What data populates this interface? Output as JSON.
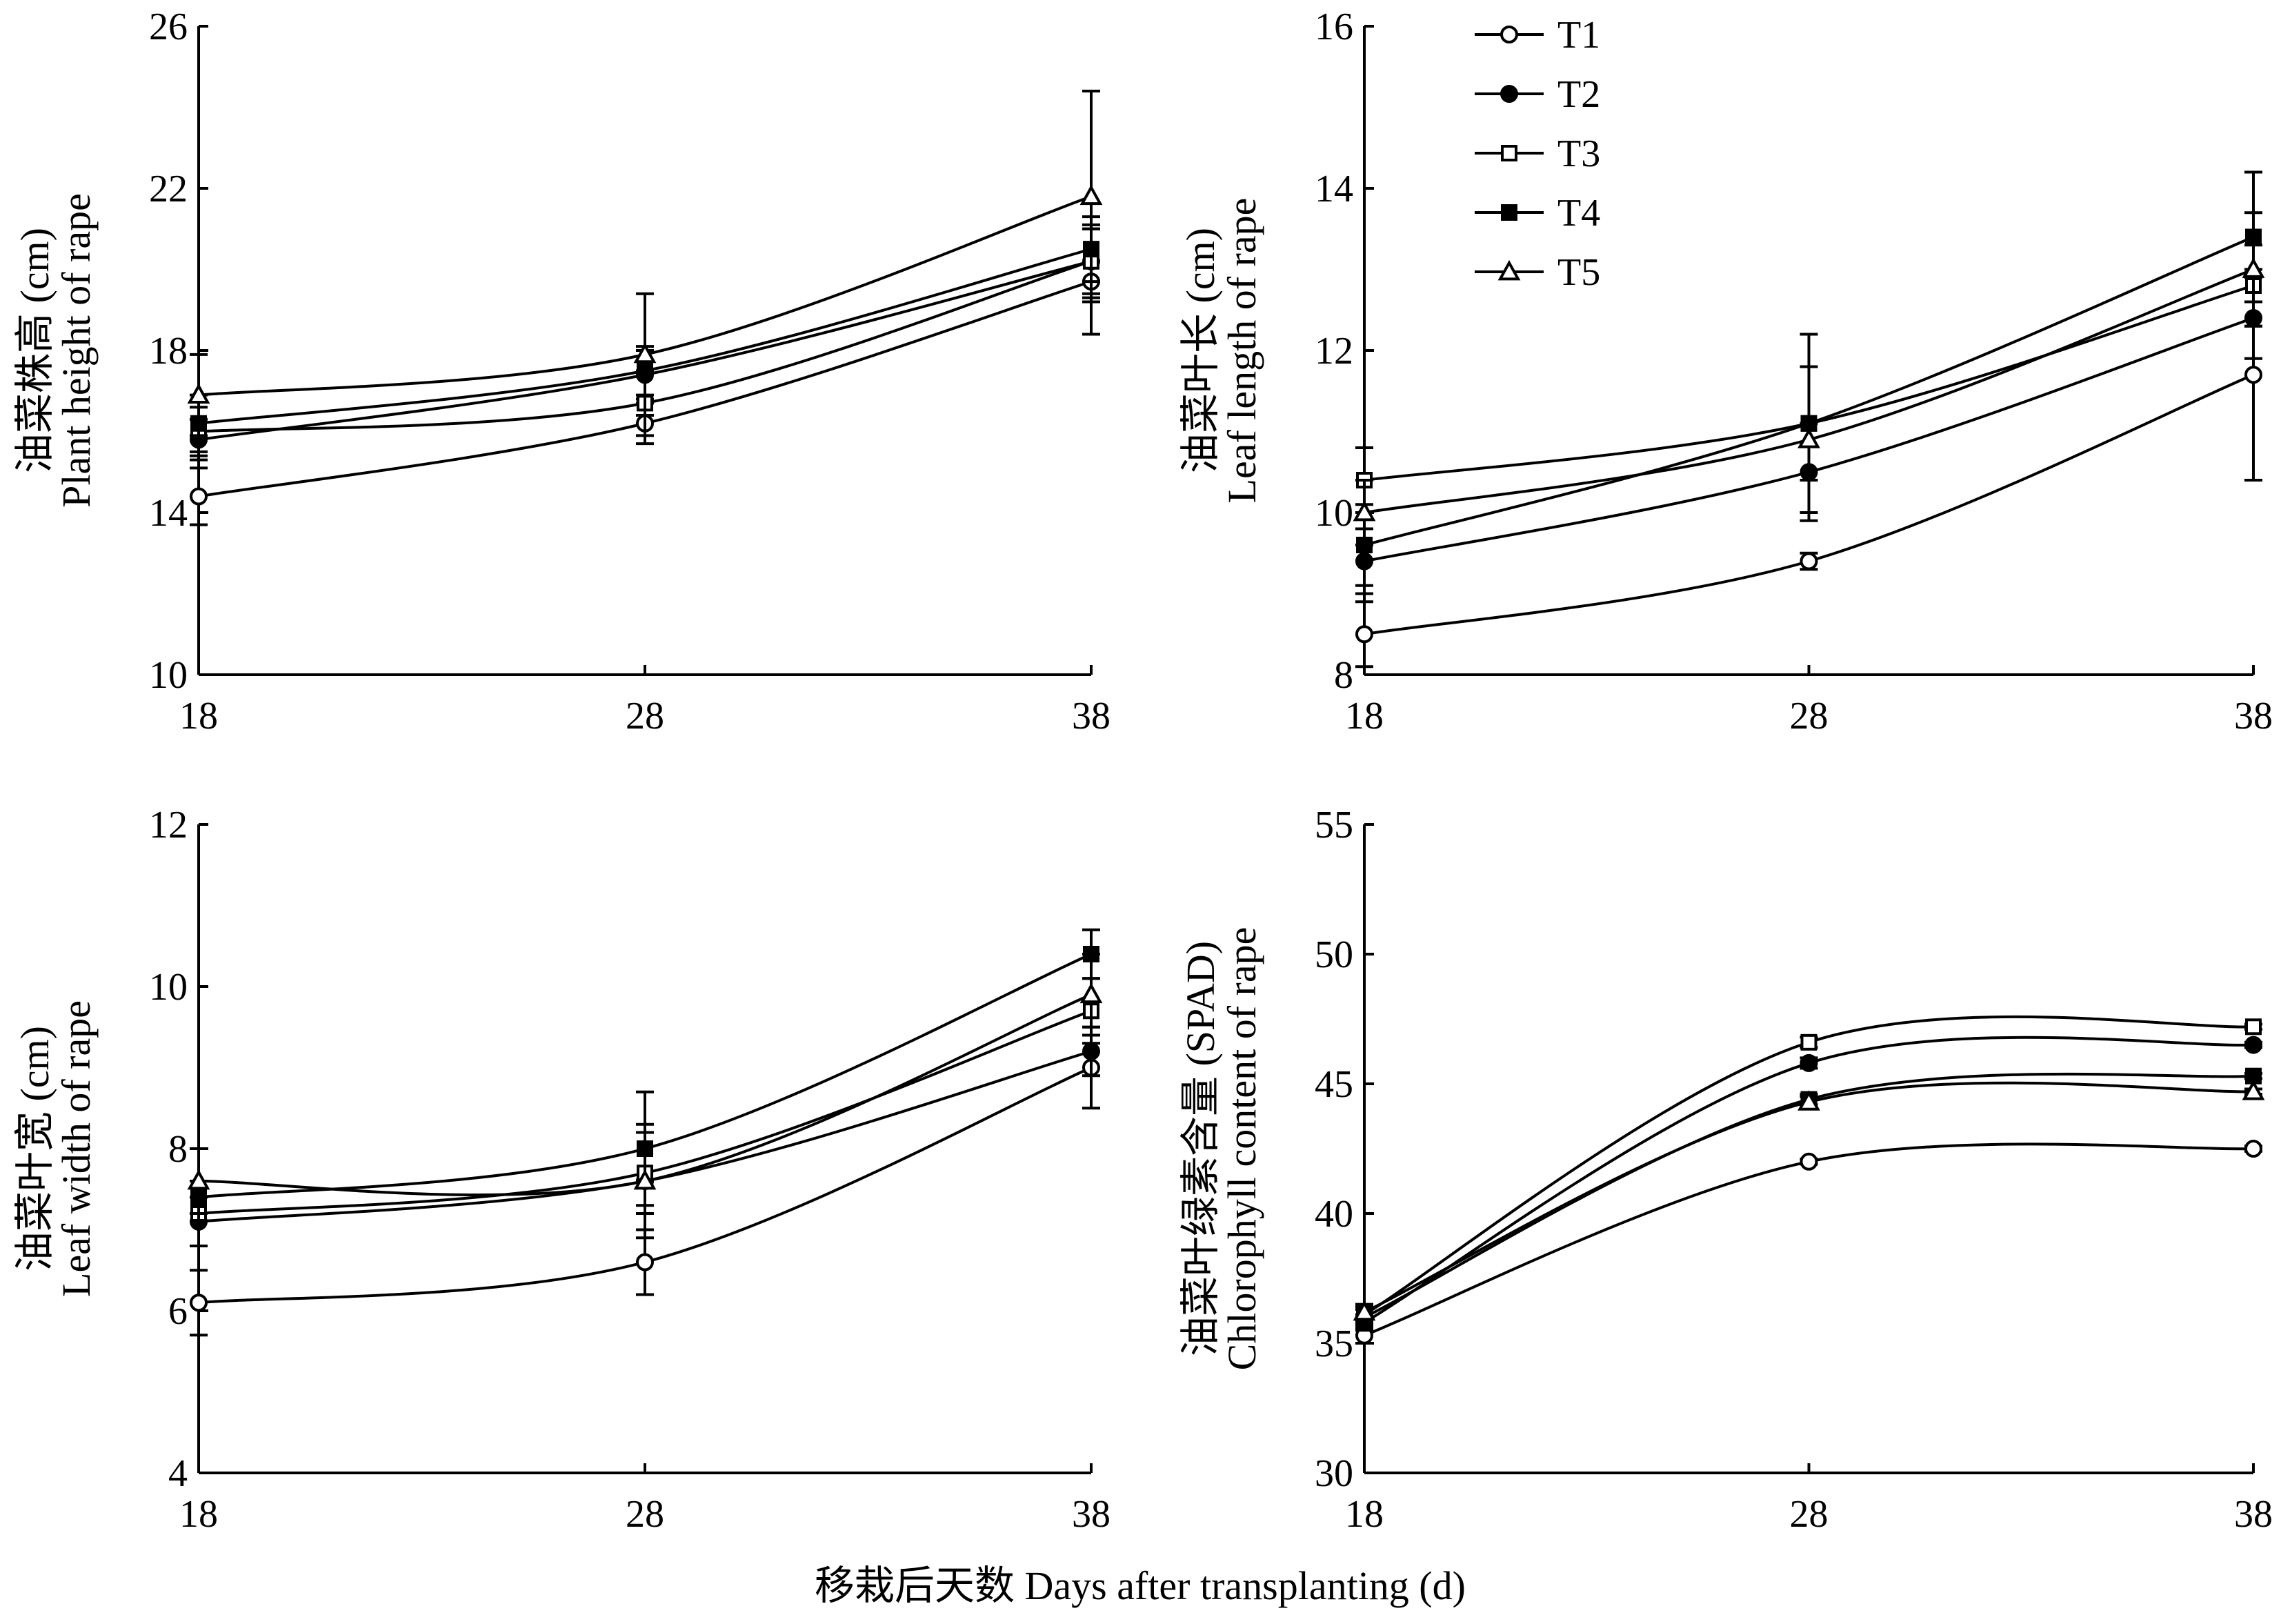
{
  "figure": {
    "x_title": "移栽后天数 Days after transplanting (d)"
  },
  "legend": [
    {
      "name": "T1",
      "marker": "circle-open"
    },
    {
      "name": "T2",
      "marker": "circle-filled"
    },
    {
      "name": "T3",
      "marker": "square-open"
    },
    {
      "name": "T4",
      "marker": "square-filled"
    },
    {
      "name": "T5",
      "marker": "triangle-open"
    }
  ],
  "colors": {
    "ink": "#000000",
    "background": "#ffffff"
  },
  "chart_data": [
    {
      "type": "line",
      "title": "",
      "ylabel_cn": "油菜株高 (cm)",
      "ylabel_en": "Plant height of rape",
      "x": [
        18,
        28,
        38
      ],
      "xticks": [
        "18",
        "28",
        "38"
      ],
      "yticks": [
        "10",
        "14",
        "18",
        "22",
        "26"
      ],
      "xlim": [
        18,
        38
      ],
      "ylim": [
        10,
        26
      ],
      "series": [
        {
          "name": "T1",
          "values": [
            14.4,
            16.2,
            19.7
          ],
          "errors": [
            0.7,
            0.5,
            1.3
          ]
        },
        {
          "name": "T2",
          "values": [
            15.8,
            17.4,
            20.2
          ],
          "errors": [
            0.5,
            0.6,
            0.8
          ]
        },
        {
          "name": "T3",
          "values": [
            16.0,
            16.7,
            20.2
          ],
          "errors": [
            0.6,
            0.8,
            0.9
          ]
        },
        {
          "name": "T4",
          "values": [
            16.2,
            17.5,
            20.5
          ],
          "errors": [
            0.7,
            0.6,
            0.8
          ]
        },
        {
          "name": "T5",
          "values": [
            16.9,
            17.9,
            21.8
          ],
          "errors": [
            1.0,
            1.5,
            2.6
          ]
        }
      ]
    },
    {
      "type": "line",
      "title": "",
      "ylabel_cn": "油菜叶长 (cm)",
      "ylabel_en": "Leaf length of rape",
      "x": [
        18,
        28,
        38
      ],
      "xticks": [
        "18",
        "28",
        "38"
      ],
      "yticks": [
        "8",
        "10",
        "12",
        "14",
        "16"
      ],
      "xlim": [
        18,
        38
      ],
      "ylim": [
        8,
        16
      ],
      "series": [
        {
          "name": "T1",
          "values": [
            8.5,
            9.4,
            11.7
          ],
          "errors": [
            0.4,
            0.1,
            1.3
          ]
        },
        {
          "name": "T2",
          "values": [
            9.4,
            10.5,
            12.4
          ],
          "errors": [
            0.4,
            0.6,
            0.5
          ]
        },
        {
          "name": "T3",
          "values": [
            10.4,
            11.1,
            12.8
          ],
          "errors": [
            0.4,
            0.7,
            0.5
          ]
        },
        {
          "name": "T4",
          "values": [
            9.6,
            11.1,
            13.4
          ],
          "errors": [
            0.5,
            1.1,
            0.8
          ]
        },
        {
          "name": "T5",
          "values": [
            10.0,
            10.9,
            13.0
          ],
          "errors": [
            0.4,
            0.9,
            0.7
          ]
        }
      ]
    },
    {
      "type": "line",
      "title": "",
      "ylabel_cn": "油菜叶宽 (cm)",
      "ylabel_en": "Leaf width of rape",
      "x": [
        18,
        28,
        38
      ],
      "xticks": [
        "18",
        "28",
        "38"
      ],
      "yticks": [
        "4",
        "6",
        "8",
        "10",
        "12"
      ],
      "xlim": [
        18,
        38
      ],
      "ylim": [
        4,
        12
      ],
      "series": [
        {
          "name": "T1",
          "values": [
            6.1,
            6.6,
            9.0
          ],
          "errors": [
            0.4,
            0.4,
            0.5
          ]
        },
        {
          "name": "T2",
          "values": [
            7.1,
            7.6,
            9.2
          ],
          "errors": [
            0.3,
            0.7,
            0.3
          ]
        },
        {
          "name": "T3",
          "values": [
            7.2,
            7.7,
            9.7
          ],
          "errors": [
            0.4,
            0.5,
            0.4
          ]
        },
        {
          "name": "T4",
          "values": [
            7.4,
            8.0,
            10.4
          ],
          "errors": [
            0.6,
            0.7,
            0.3
          ]
        },
        {
          "name": "T5",
          "values": [
            7.6,
            7.6,
            9.9
          ],
          "errors": [
            0.4,
            0.6,
            0.5
          ]
        }
      ]
    },
    {
      "type": "line",
      "title": "",
      "ylabel_cn": "油菜叶绿素含量 (SPAD)",
      "ylabel_en": "Chlorophyll content of rape",
      "x": [
        18,
        28,
        38
      ],
      "xticks": [
        "18",
        "28",
        "38"
      ],
      "yticks": [
        "30",
        "35",
        "40",
        "45",
        "50",
        "55"
      ],
      "xlim": [
        18,
        38
      ],
      "ylim": [
        30,
        55
      ],
      "series": [
        {
          "name": "T1",
          "values": [
            35.3,
            42.0,
            42.5
          ],
          "errors": [
            0.3,
            0.1,
            0.1
          ]
        },
        {
          "name": "T2",
          "values": [
            35.8,
            45.8,
            46.5
          ],
          "errors": [
            0.3,
            0.2,
            0.1
          ]
        },
        {
          "name": "T3",
          "values": [
            36.1,
            46.6,
            47.2
          ],
          "errors": [
            0.3,
            0.2,
            0.1
          ]
        },
        {
          "name": "T4",
          "values": [
            36.0,
            44.4,
            45.3
          ],
          "errors": [
            0.3,
            0.2,
            0.1
          ]
        },
        {
          "name": "T5",
          "values": [
            36.2,
            44.3,
            44.7
          ],
          "errors": [
            0.3,
            0.2,
            0.1
          ]
        }
      ]
    }
  ]
}
